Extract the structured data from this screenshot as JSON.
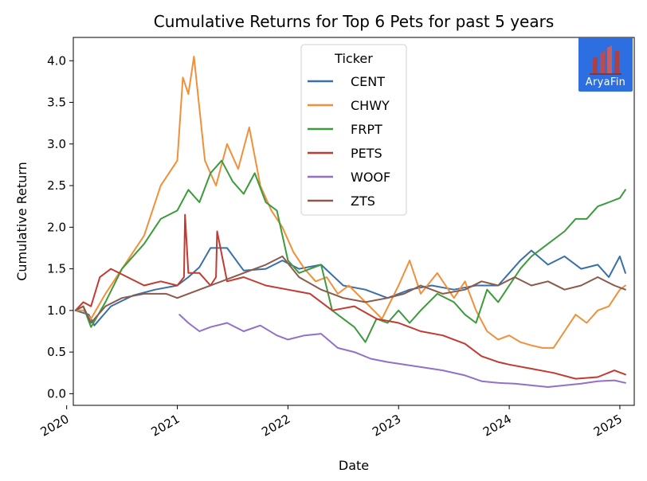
{
  "chart_data": {
    "type": "line",
    "title": "Cumulative Returns for Top 6 Pets for past 5 years",
    "xlabel": "Date",
    "ylabel": "Cumulative Return",
    "xlim": [
      2020.06,
      2025.13
    ],
    "ylim": [
      -0.14,
      4.28
    ],
    "x_ticks": [
      "2020",
      "2021",
      "2022",
      "2023",
      "2024",
      "2025"
    ],
    "y_ticks": [
      "0.0",
      "0.5",
      "1.0",
      "1.5",
      "2.0",
      "2.5",
      "3.0",
      "3.5",
      "4.0"
    ],
    "grid": false,
    "legend": {
      "title": "Ticker",
      "placement": "upper-center"
    },
    "series": [
      {
        "name": "CENT",
        "color": "#3a6fa8",
        "x": [
          2020.08,
          2020.2,
          2020.25,
          2020.4,
          2020.6,
          2020.8,
          2021.0,
          2021.1,
          2021.2,
          2021.3,
          2021.45,
          2021.6,
          2021.8,
          2021.95,
          2022.1,
          2022.3,
          2022.5,
          2022.7,
          2022.9,
          2023.1,
          2023.3,
          2023.5,
          2023.7,
          2023.9,
          2024.0,
          2024.1,
          2024.2,
          2024.35,
          2024.5,
          2024.65,
          2024.8,
          2024.9,
          2025.0,
          2025.05
        ],
        "y": [
          1.0,
          0.95,
          0.82,
          1.05,
          1.18,
          1.25,
          1.3,
          1.4,
          1.52,
          1.75,
          1.75,
          1.48,
          1.5,
          1.6,
          1.5,
          1.55,
          1.3,
          1.25,
          1.15,
          1.25,
          1.3,
          1.25,
          1.3,
          1.3,
          1.45,
          1.6,
          1.72,
          1.55,
          1.65,
          1.5,
          1.55,
          1.4,
          1.65,
          1.45
        ]
      },
      {
        "name": "CHWY",
        "color": "#f0903a",
        "x": [
          2020.08,
          2020.15,
          2020.22,
          2020.35,
          2020.5,
          2020.7,
          2020.85,
          2021.0,
          2021.05,
          2021.1,
          2021.15,
          2021.25,
          2021.35,
          2021.45,
          2021.55,
          2021.65,
          2021.75,
          2021.85,
          2021.95,
          2022.05,
          2022.15,
          2022.25,
          2022.35,
          2022.45,
          2022.55,
          2022.7,
          2022.85,
          2023.0,
          2023.1,
          2023.2,
          2023.35,
          2023.5,
          2023.6,
          2023.7,
          2023.8,
          2023.9,
          2024.0,
          2024.1,
          2024.2,
          2024.3,
          2024.4,
          2024.5,
          2024.6,
          2024.7,
          2024.8,
          2024.9,
          2025.0,
          2025.05
        ],
        "y": [
          1.0,
          1.0,
          0.9,
          1.2,
          1.5,
          1.9,
          2.5,
          2.8,
          3.8,
          3.6,
          4.05,
          2.8,
          2.5,
          3.0,
          2.7,
          3.2,
          2.5,
          2.2,
          2.0,
          1.7,
          1.5,
          1.35,
          1.4,
          1.2,
          1.3,
          1.1,
          0.9,
          1.3,
          1.6,
          1.2,
          1.45,
          1.15,
          1.35,
          1.0,
          0.75,
          0.65,
          0.7,
          0.62,
          0.58,
          0.55,
          0.55,
          0.75,
          0.95,
          0.85,
          1.0,
          1.05,
          1.25,
          1.3
        ]
      },
      {
        "name": "FRPT",
        "color": "#3d9a3d",
        "x": [
          2020.08,
          2020.15,
          2020.22,
          2020.35,
          2020.5,
          2020.7,
          2020.85,
          2021.0,
          2021.1,
          2021.2,
          2021.3,
          2021.4,
          2021.5,
          2021.6,
          2021.7,
          2021.8,
          2021.9,
          2022.0,
          2022.1,
          2022.2,
          2022.3,
          2022.4,
          2022.5,
          2022.6,
          2022.7,
          2022.8,
          2022.9,
          2023.0,
          2023.1,
          2023.2,
          2023.35,
          2023.5,
          2023.6,
          2023.7,
          2023.8,
          2023.9,
          2024.0,
          2024.1,
          2024.2,
          2024.35,
          2024.5,
          2024.6,
          2024.7,
          2024.8,
          2024.9,
          2025.0,
          2025.05
        ],
        "y": [
          1.0,
          1.05,
          0.8,
          1.1,
          1.5,
          1.8,
          2.1,
          2.2,
          2.45,
          2.3,
          2.65,
          2.8,
          2.55,
          2.4,
          2.65,
          2.3,
          2.2,
          1.6,
          1.45,
          1.5,
          1.55,
          1.0,
          0.9,
          0.8,
          0.62,
          0.9,
          0.85,
          1.0,
          0.85,
          1.0,
          1.2,
          1.1,
          0.95,
          0.85,
          1.25,
          1.1,
          1.3,
          1.5,
          1.65,
          1.8,
          1.95,
          2.1,
          2.1,
          2.25,
          2.3,
          2.35,
          2.45
        ]
      },
      {
        "name": "PETS",
        "color": "#c23a32",
        "x": [
          2020.08,
          2020.15,
          2020.22,
          2020.3,
          2020.4,
          2020.55,
          2020.7,
          2020.85,
          2021.0,
          2021.06,
          2021.07,
          2021.1,
          2021.2,
          2021.3,
          2021.35,
          2021.36,
          2021.45,
          2021.6,
          2021.8,
          2022.0,
          2022.2,
          2022.4,
          2022.6,
          2022.8,
          2023.0,
          2023.2,
          2023.4,
          2023.6,
          2023.75,
          2023.9,
          2024.0,
          2024.2,
          2024.4,
          2024.6,
          2024.8,
          2024.95,
          2025.05
        ],
        "y": [
          1.0,
          1.1,
          1.05,
          1.4,
          1.5,
          1.4,
          1.3,
          1.35,
          1.3,
          1.4,
          2.15,
          1.45,
          1.45,
          1.3,
          1.4,
          1.95,
          1.35,
          1.4,
          1.3,
          1.25,
          1.2,
          1.0,
          1.05,
          0.9,
          0.85,
          0.75,
          0.7,
          0.6,
          0.45,
          0.38,
          0.35,
          0.3,
          0.25,
          0.18,
          0.2,
          0.28,
          0.23
        ]
      },
      {
        "name": "WOOF",
        "color": "#9370c8",
        "x": [
          2021.02,
          2021.1,
          2021.2,
          2021.3,
          2021.45,
          2021.6,
          2021.75,
          2021.9,
          2022.0,
          2022.15,
          2022.3,
          2022.45,
          2022.6,
          2022.75,
          2022.9,
          2023.05,
          2023.2,
          2023.4,
          2023.6,
          2023.75,
          2023.9,
          2024.05,
          2024.2,
          2024.35,
          2024.5,
          2024.65,
          2024.8,
          2024.95,
          2025.05
        ],
        "y": [
          0.95,
          0.85,
          0.75,
          0.8,
          0.85,
          0.75,
          0.82,
          0.7,
          0.65,
          0.7,
          0.72,
          0.55,
          0.5,
          0.42,
          0.38,
          0.35,
          0.32,
          0.28,
          0.22,
          0.15,
          0.13,
          0.12,
          0.1,
          0.08,
          0.1,
          0.12,
          0.15,
          0.16,
          0.13
        ]
      },
      {
        "name": "ZTS",
        "color": "#8b5a4a",
        "x": [
          2020.08,
          2020.15,
          2020.22,
          2020.35,
          2020.5,
          2020.7,
          2020.9,
          2021.0,
          2021.2,
          2021.4,
          2021.6,
          2021.8,
          2021.95,
          2022.1,
          2022.3,
          2022.5,
          2022.7,
          2022.9,
          2023.05,
          2023.2,
          2023.4,
          2023.6,
          2023.75,
          2023.9,
          2024.05,
          2024.2,
          2024.35,
          2024.5,
          2024.65,
          2024.8,
          2024.95,
          2025.05
        ],
        "y": [
          1.0,
          1.05,
          0.85,
          1.05,
          1.15,
          1.2,
          1.2,
          1.15,
          1.25,
          1.35,
          1.45,
          1.55,
          1.65,
          1.4,
          1.25,
          1.15,
          1.1,
          1.15,
          1.2,
          1.3,
          1.2,
          1.25,
          1.35,
          1.3,
          1.4,
          1.3,
          1.35,
          1.25,
          1.3,
          1.4,
          1.3,
          1.25
        ]
      }
    ]
  },
  "logo": {
    "text": "AryaFin",
    "color": "#2d6fe0"
  }
}
